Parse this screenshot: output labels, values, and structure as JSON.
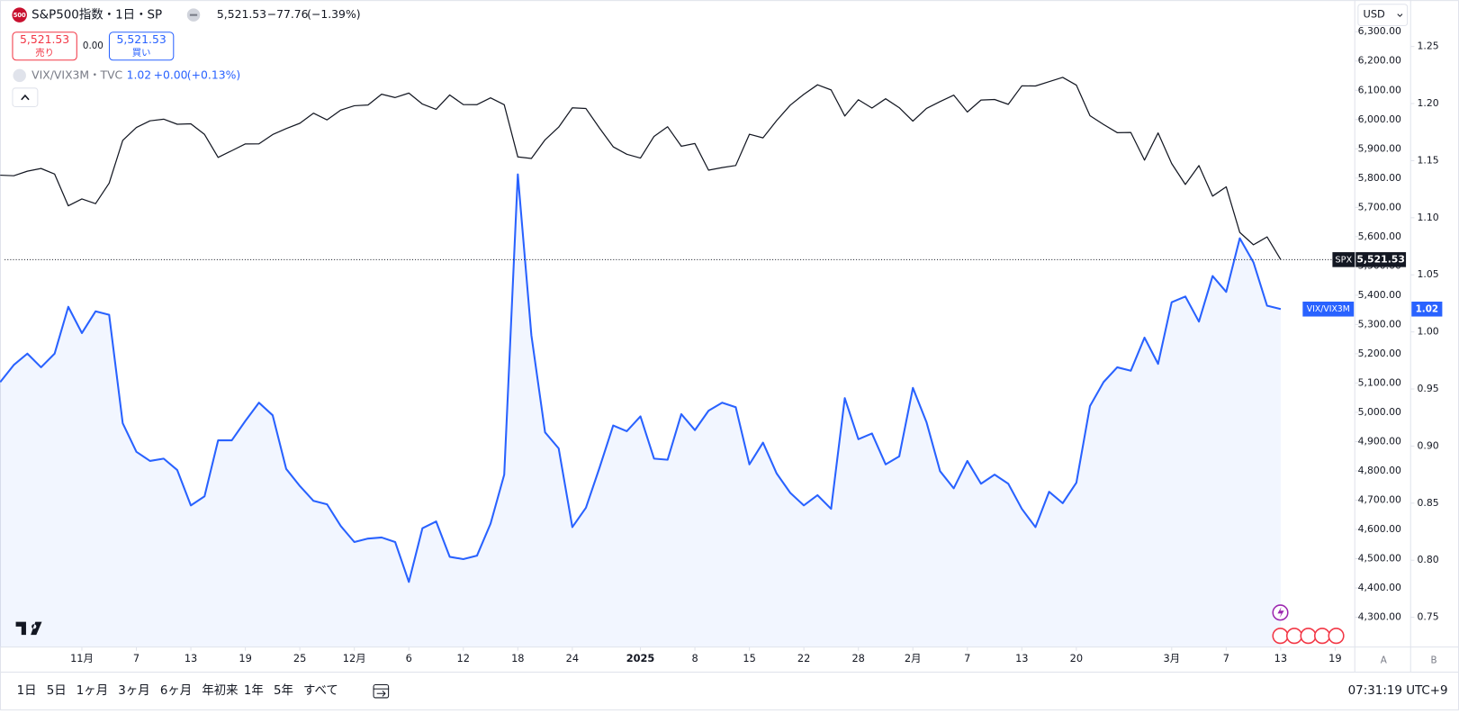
{
  "header": {
    "symbol_icon": "500",
    "title": "S&P500指数・1日・SP",
    "last": "5,521.53",
    "change": "−77.76",
    "change_pct": "(−1.39%)"
  },
  "trade": {
    "sell_price": "5,521.53",
    "sell": "売り",
    "spread": "0.00",
    "buy_price": "5,521.53",
    "buy": "買い"
  },
  "overlay": {
    "title": "VIX/VIX3M・TVC",
    "change": "+0.00",
    "change_pct": "(+0.13%)"
  },
  "currency": "USD",
  "axis_buttons": [
    "A",
    "B"
  ],
  "toolbar": {
    "ranges": [
      "1日",
      "5日",
      "1ヶ月",
      "3ヶ月",
      "6ヶ月",
      "年初来",
      "1年",
      "5年",
      "すべて"
    ],
    "time": "07:31:19 UTC+9"
  },
  "chart_data": {
    "type": "line",
    "grid": false,
    "xlim": [
      0.33,
      99.44
    ],
    "xticks": [
      {
        "value": 6,
        "label": "11月"
      },
      {
        "value": 10,
        "label": "7"
      },
      {
        "value": 14,
        "label": "13"
      },
      {
        "value": 18,
        "label": "19"
      },
      {
        "value": 22,
        "label": "25"
      },
      {
        "value": 26,
        "label": "12月"
      },
      {
        "value": 30,
        "label": "6"
      },
      {
        "value": 34,
        "label": "12"
      },
      {
        "value": 38,
        "label": "18"
      },
      {
        "value": 42,
        "label": "24"
      },
      {
        "value": 47,
        "label": "2025"
      },
      {
        "value": 51,
        "label": "8"
      },
      {
        "value": 55,
        "label": "15"
      },
      {
        "value": 59,
        "label": "22"
      },
      {
        "value": 63,
        "label": "28"
      },
      {
        "value": 67,
        "label": "2月"
      },
      {
        "value": 71,
        "label": "7"
      },
      {
        "value": 75,
        "label": "13"
      },
      {
        "value": 79,
        "label": "20"
      },
      {
        "value": 86,
        "label": "3月"
      },
      {
        "value": 90,
        "label": "7"
      },
      {
        "value": 94,
        "label": "13"
      },
      {
        "value": 98,
        "label": "19"
      }
    ],
    "ylim": [
      4198.3,
      6401.7
    ],
    "yticks": [
      {
        "value": 4300,
        "label": "4,300.00"
      },
      {
        "value": 4400,
        "label": "4,400.00"
      },
      {
        "value": 4500,
        "label": "4,500.00"
      },
      {
        "value": 4600,
        "label": "4,600.00"
      },
      {
        "value": 4700,
        "label": "4,700.00"
      },
      {
        "value": 4800,
        "label": "4,800.00"
      },
      {
        "value": 4900,
        "label": "4,900.00"
      },
      {
        "value": 5000,
        "label": "5,000.00"
      },
      {
        "value": 5100,
        "label": "5,100.00"
      },
      {
        "value": 5200,
        "label": "5,200.00"
      },
      {
        "value": 5300,
        "label": "5,300.00"
      },
      {
        "value": 5400,
        "label": "5,400.00"
      },
      {
        "value": 5500,
        "label": "5,500.00"
      },
      {
        "value": 5600,
        "label": "5,600.00"
      },
      {
        "value": 5700,
        "label": "5,700.00"
      },
      {
        "value": 5800,
        "label": "5,800.00"
      },
      {
        "value": 5900,
        "label": "5,900.00"
      },
      {
        "value": 6000,
        "label": "6,000.00"
      },
      {
        "value": 6100,
        "label": "6,100.00"
      },
      {
        "value": 6200,
        "label": "6,200.00"
      },
      {
        "value": 6300,
        "label": "6,300.00"
      }
    ],
    "y2lim": [
      0.724,
      1.289
    ],
    "y2ticks": [
      0.75,
      {
        "value": 0.8,
        "label": "0.80"
      },
      0.85,
      {
        "value": 0.9,
        "label": "0.90"
      },
      0.95,
      {
        "value": 1,
        "label": "1.00"
      },
      1.05,
      {
        "value": 1.1,
        "label": "1.10"
      },
      1.15,
      {
        "value": 1.2,
        "label": "1.20"
      },
      1.25
    ],
    "series": [
      {
        "name": "SPX",
        "color": "#131722",
        "last_label": "5,521.53",
        "values": [
          5809.86,
          5808.12,
          5823.52,
          5832.92,
          5813.67,
          5705.45,
          5728.8,
          5712.69,
          5782.76,
          5929.04,
          5973.1,
          5995.54,
          6001.35,
          5983.99,
          5985.38,
          5949.17,
          5870.62,
          5893.62,
          5916.98,
          5917.11,
          5948.71,
          5969.34,
          5987.37,
          6021.63,
          5998.74,
          6032.38,
          6047.15,
          6049.88,
          6086.49,
          6075.11,
          6090.27,
          6052.85,
          6034.91,
          6084.19,
          6051.25,
          6051.09,
          6074.08,
          6050.61,
          5872.16,
          5867.08,
          5930.85,
          5974.07,
          6040.04,
          6037.59,
          5970.84,
          5906.94,
          5881.63,
          5868.55,
          5942.47,
          5975.38,
          5909.03,
          5918.25,
          5827.04,
          5836.22,
          5842.91,
          5949.91,
          5937.34,
          5996.66,
          6049.24,
          6086.37,
          6118.71,
          6101.24,
          6012.28,
          6067.7,
          6039.31,
          6071.17,
          6040.53,
          5994.57,
          6037.88,
          6061.48,
          6083.57,
          6025.99,
          6066.44,
          6068.5,
          6051.97,
          6115.07,
          6114.63,
          6129.58,
          6144.15,
          6117.52,
          6013.13,
          5983.25,
          5955.25,
          5956.06,
          5861.57,
          5954.5,
          5849.72,
          5778.15,
          5842.63,
          5738.52,
          5770.2,
          5614.56,
          5572.07,
          5599.3,
          5521.53
        ]
      },
      {
        "name": "VIX/VIX3M",
        "color": "#2962ff",
        "axis": "y2",
        "values": [
          0.956,
          0.971,
          0.981,
          0.969,
          0.981,
          1.022,
          0.999,
          1.018,
          1.015,
          0.92,
          0.895,
          0.887,
          0.889,
          0.879,
          0.848,
          0.856,
          0.905,
          0.905,
          0.922,
          0.938,
          0.927,
          0.88,
          0.865,
          0.852,
          0.849,
          0.83,
          0.816,
          0.819,
          0.82,
          0.816,
          0.781,
          0.828,
          0.834,
          0.803,
          0.801,
          0.804,
          0.832,
          0.875,
          1.138,
          0.997,
          0.912,
          0.898,
          0.829,
          0.846,
          0.881,
          0.918,
          0.913,
          0.926,
          0.889,
          0.888,
          0.928,
          0.914,
          0.931,
          0.938,
          0.934,
          0.884,
          0.903,
          0.876,
          0.859,
          0.848,
          0.857,
          0.845,
          0.942,
          0.906,
          0.911,
          0.884,
          0.891,
          0.951,
          0.921,
          0.878,
          0.863,
          0.887,
          0.867,
          0.875,
          0.867,
          0.845,
          0.829,
          0.86,
          0.85,
          0.868,
          0.935,
          0.956,
          0.969,
          0.966,
          0.995,
          0.972,
          1.026,
          1.031,
          1.009,
          1.049,
          1.035,
          1.082,
          1.061,
          1.023,
          1.02
        ]
      }
    ]
  }
}
